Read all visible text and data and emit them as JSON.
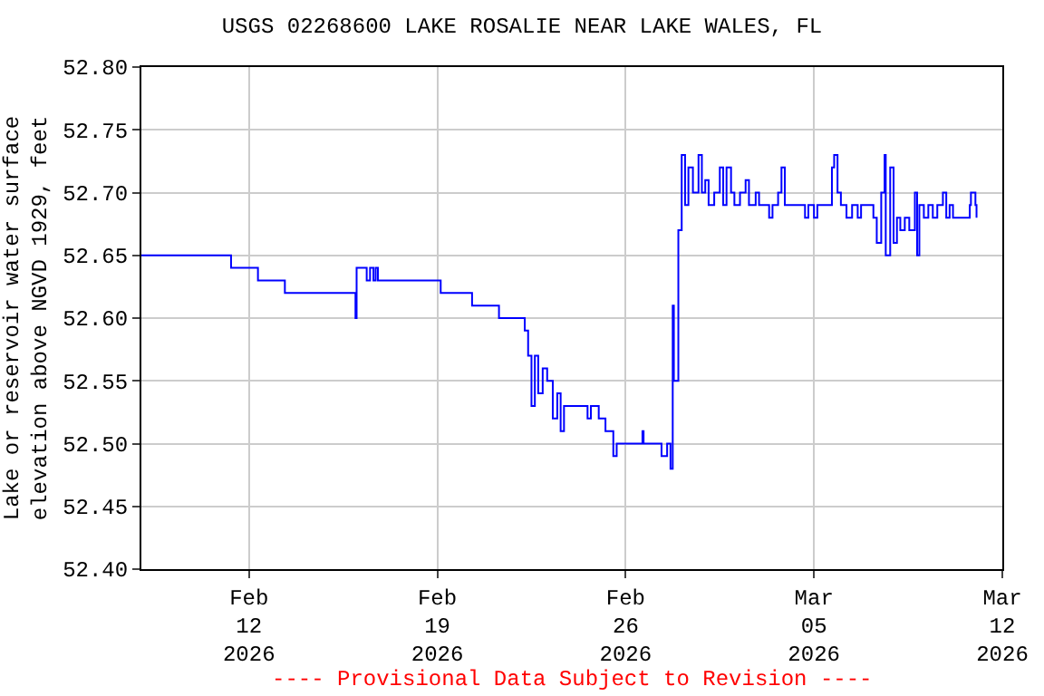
{
  "chart_data": {
    "type": "step",
    "title": "USGS 02268600 LAKE ROSALIE NEAR LAKE WALES, FL",
    "ylabel": "Lake or reservoir water surface\nelevation above NGVD 1929, feet",
    "annotations": [
      "---- Provisional Data Subject to Revision ----"
    ],
    "xlim": [
      "2026-02-08",
      "2026-03-12"
    ],
    "xticks": [
      {
        "value": "2026-02-12",
        "label": "Feb\n12\n2026"
      },
      {
        "value": "2026-02-19",
        "label": "Feb\n19\n2026"
      },
      {
        "value": "2026-02-26",
        "label": "Feb\n26\n2026"
      },
      {
        "value": "2026-03-05",
        "label": "Mar\n05\n2026"
      },
      {
        "value": "2026-03-12",
        "label": "Mar\n12\n2026"
      }
    ],
    "ylim": [
      52.4,
      52.8
    ],
    "yticks": [
      {
        "value": 52.4,
        "label": "52.40"
      },
      {
        "value": 52.45,
        "label": "52.45"
      },
      {
        "value": 52.5,
        "label": "52.50"
      },
      {
        "value": 52.55,
        "label": "52.55"
      },
      {
        "value": 52.6,
        "label": "52.60"
      },
      {
        "value": 52.65,
        "label": "52.65"
      },
      {
        "value": 52.7,
        "label": "52.70"
      },
      {
        "value": 52.75,
        "label": "52.75"
      },
      {
        "value": 52.8,
        "label": "52.80"
      }
    ],
    "grid": true,
    "series": [
      {
        "color": "#0000ff",
        "x": [
          "2026-02-08T00:00",
          "2026-02-11T08:00",
          "2026-02-12T08:00",
          "2026-02-13T08:00",
          "2026-02-15T23:00",
          "2026-02-16T00:00",
          "2026-02-16T09:00",
          "2026-02-16T12:00",
          "2026-02-16T15:00",
          "2026-02-16T17:00",
          "2026-02-16T19:00",
          "2026-02-19T03:00",
          "2026-02-20T07:00",
          "2026-02-21T07:00",
          "2026-02-22T06:00",
          "2026-02-22T09:00",
          "2026-02-22T12:00",
          "2026-02-22T15:00",
          "2026-02-22T18:00",
          "2026-02-22T22:00",
          "2026-02-23T02:00",
          "2026-02-23T07:00",
          "2026-02-23T11:00",
          "2026-02-23T14:00",
          "2026-02-23T17:00",
          "2026-02-24T14:00",
          "2026-02-24T17:00",
          "2026-02-25T00:00",
          "2026-02-25T06:00",
          "2026-02-25T13:00",
          "2026-02-25T16:00",
          "2026-02-26T15:00",
          "2026-02-26T16:00",
          "2026-02-27T08:00",
          "2026-02-27T13:00",
          "2026-02-27T16:00",
          "2026-02-27T18:00",
          "2026-02-27T19:00",
          "2026-02-27T23:00",
          "2026-02-28T02:00",
          "2026-02-28T05:00",
          "2026-02-28T08:00",
          "2026-02-28T12:00",
          "2026-02-28T17:00",
          "2026-02-28T20:00",
          "2026-02-28T23:00",
          "2026-03-01T02:00",
          "2026-03-01T07:00",
          "2026-03-01T12:00",
          "2026-03-01T15:00",
          "2026-03-01T18:00",
          "2026-03-01T22:00",
          "2026-03-02T01:00",
          "2026-03-02T06:00",
          "2026-03-02T11:00",
          "2026-03-02T14:00",
          "2026-03-02T20:00",
          "2026-03-02T23:00",
          "2026-03-03T08:00",
          "2026-03-03T11:00",
          "2026-03-03T16:00",
          "2026-03-03T19:00",
          "2026-03-03T22:00",
          "2026-03-04T08:00",
          "2026-03-04T16:00",
          "2026-03-04T19:00",
          "2026-03-05T00:00",
          "2026-03-05T03:00",
          "2026-03-05T13:00",
          "2026-03-05T16:00",
          "2026-03-05T18:00",
          "2026-03-05T21:00",
          "2026-03-06T00:00",
          "2026-03-06T05:00",
          "2026-03-06T10:00",
          "2026-03-06T15:00",
          "2026-03-06T18:00",
          "2026-03-07T00:00",
          "2026-03-07T05:00",
          "2026-03-07T08:00",
          "2026-03-07T12:00",
          "2026-03-07T15:00",
          "2026-03-07T16:00",
          "2026-03-07T20:00",
          "2026-03-07T23:00",
          "2026-03-08T02:00",
          "2026-03-08T05:00",
          "2026-03-08T09:00",
          "2026-03-08T13:00",
          "2026-03-08T18:00",
          "2026-03-08T20:00",
          "2026-03-08T22:00",
          "2026-03-09T02:00",
          "2026-03-09T06:00",
          "2026-03-09T10:00",
          "2026-03-09T14:00",
          "2026-03-09T19:00",
          "2026-03-09T22:00",
          "2026-03-10T01:00",
          "2026-03-10T04:00",
          "2026-03-10T11:00",
          "2026-03-10T19:00",
          "2026-03-10T20:00",
          "2026-03-11T00:00",
          "2026-03-11T01:00"
        ],
        "values": [
          52.65,
          52.64,
          52.63,
          52.62,
          52.6,
          52.64,
          52.63,
          52.64,
          52.63,
          52.64,
          52.63,
          52.62,
          52.61,
          52.6,
          52.59,
          52.57,
          52.53,
          52.57,
          52.54,
          52.56,
          52.55,
          52.52,
          52.54,
          52.51,
          52.53,
          52.52,
          52.53,
          52.52,
          52.51,
          52.49,
          52.5,
          52.51,
          52.5,
          52.49,
          52.5,
          52.48,
          52.61,
          52.55,
          52.67,
          52.73,
          52.69,
          52.72,
          52.7,
          52.73,
          52.7,
          52.71,
          52.69,
          52.7,
          52.72,
          52.69,
          52.72,
          52.7,
          52.69,
          52.7,
          52.71,
          52.69,
          52.7,
          52.69,
          52.68,
          52.69,
          52.7,
          52.72,
          52.69,
          52.69,
          52.68,
          52.69,
          52.68,
          52.69,
          52.69,
          52.72,
          52.73,
          52.7,
          52.69,
          52.68,
          52.69,
          52.68,
          52.69,
          52.69,
          52.68,
          52.66,
          52.7,
          52.73,
          52.65,
          52.72,
          52.66,
          52.68,
          52.67,
          52.68,
          52.67,
          52.7,
          52.65,
          52.69,
          52.68,
          52.69,
          52.68,
          52.69,
          52.7,
          52.68,
          52.69,
          52.68,
          52.68,
          52.69,
          52.7,
          52.69,
          52.68
        ]
      }
    ]
  }
}
